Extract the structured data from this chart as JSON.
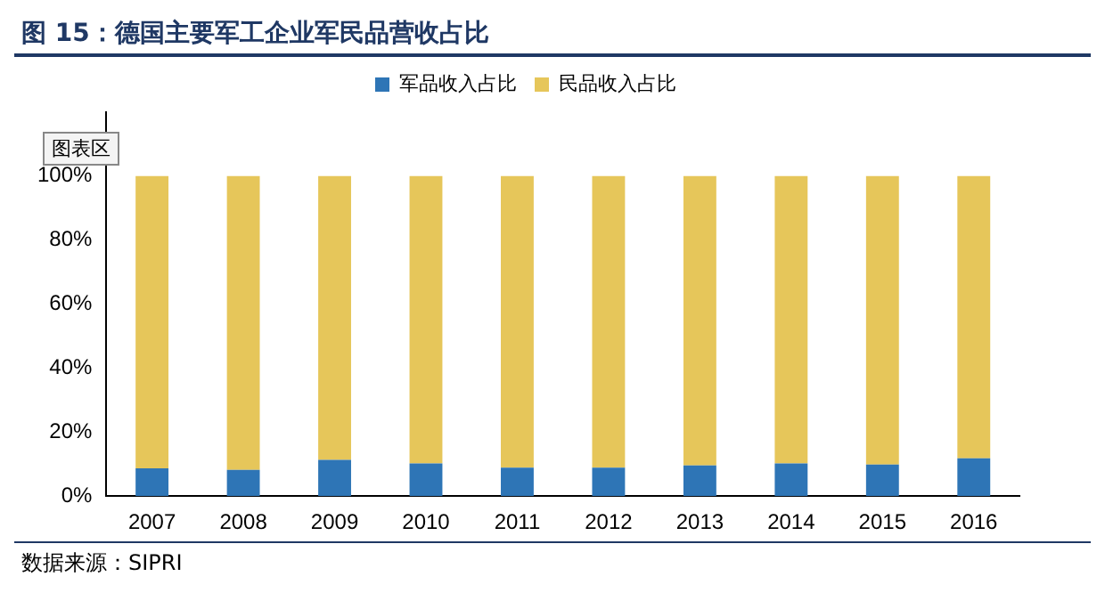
{
  "chart_data": {
    "type": "bar",
    "title": "图 15：德国主要军工企业军民品营收占比",
    "categories": [
      "2007",
      "2008",
      "2009",
      "2010",
      "2011",
      "2012",
      "2013",
      "2014",
      "2015",
      "2016"
    ],
    "series": [
      {
        "name": "军品收入占比",
        "color": "#2e75b6",
        "values": [
          8.7,
          8.2,
          11.3,
          10.2,
          8.9,
          8.9,
          9.6,
          10.2,
          9.9,
          11.8
        ]
      },
      {
        "name": "民品收入占比",
        "color": "#e6c65a",
        "values": [
          91.3,
          91.8,
          88.7,
          89.8,
          91.1,
          91.1,
          90.4,
          89.8,
          90.1,
          88.2
        ]
      }
    ],
    "stacked": true,
    "ylim": [
      0,
      120
    ],
    "yticks": [
      {
        "value": 0,
        "label": "0%"
      },
      {
        "value": 20,
        "label": "20%"
      },
      {
        "value": 40,
        "label": "40%"
      },
      {
        "value": 60,
        "label": "60%"
      },
      {
        "value": 80,
        "label": "80%"
      },
      {
        "value": 100,
        "label": "100%"
      }
    ],
    "grid": false,
    "legend": "top",
    "annotations": [
      "图表区",
      "数据来源：SIPRI"
    ]
  }
}
